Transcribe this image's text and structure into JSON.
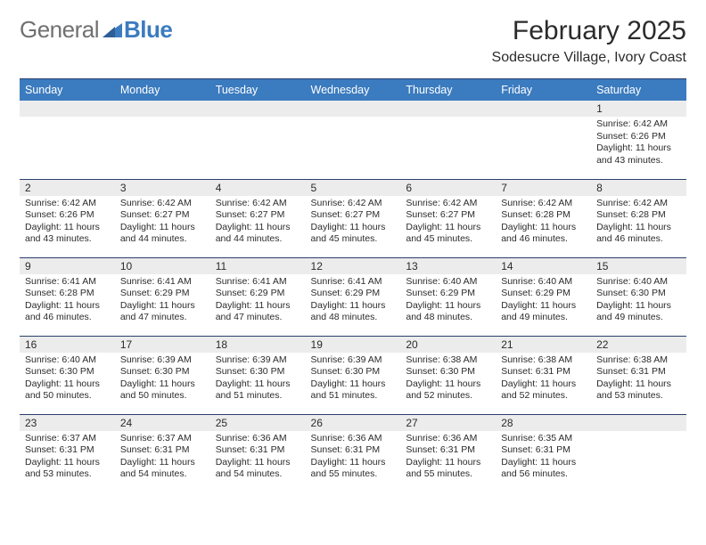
{
  "brand": {
    "word1": "General",
    "word2": "Blue",
    "logo_color": "#3b7bbf"
  },
  "title": "February 2025",
  "location": "Sodesucre Village, Ivory Coast",
  "header_bg": "#3b7bbf",
  "header_fg": "#ffffff",
  "daynum_bg": "#ececec",
  "rule_color": "#2a3e6b",
  "day_headers": [
    "Sunday",
    "Monday",
    "Tuesday",
    "Wednesday",
    "Thursday",
    "Friday",
    "Saturday"
  ],
  "weeks": [
    [
      null,
      null,
      null,
      null,
      null,
      null,
      {
        "n": "1",
        "sunrise": "Sunrise: 6:42 AM",
        "sunset": "Sunset: 6:26 PM",
        "daylight": "Daylight: 11 hours and 43 minutes."
      }
    ],
    [
      {
        "n": "2",
        "sunrise": "Sunrise: 6:42 AM",
        "sunset": "Sunset: 6:26 PM",
        "daylight": "Daylight: 11 hours and 43 minutes."
      },
      {
        "n": "3",
        "sunrise": "Sunrise: 6:42 AM",
        "sunset": "Sunset: 6:27 PM",
        "daylight": "Daylight: 11 hours and 44 minutes."
      },
      {
        "n": "4",
        "sunrise": "Sunrise: 6:42 AM",
        "sunset": "Sunset: 6:27 PM",
        "daylight": "Daylight: 11 hours and 44 minutes."
      },
      {
        "n": "5",
        "sunrise": "Sunrise: 6:42 AM",
        "sunset": "Sunset: 6:27 PM",
        "daylight": "Daylight: 11 hours and 45 minutes."
      },
      {
        "n": "6",
        "sunrise": "Sunrise: 6:42 AM",
        "sunset": "Sunset: 6:27 PM",
        "daylight": "Daylight: 11 hours and 45 minutes."
      },
      {
        "n": "7",
        "sunrise": "Sunrise: 6:42 AM",
        "sunset": "Sunset: 6:28 PM",
        "daylight": "Daylight: 11 hours and 46 minutes."
      },
      {
        "n": "8",
        "sunrise": "Sunrise: 6:42 AM",
        "sunset": "Sunset: 6:28 PM",
        "daylight": "Daylight: 11 hours and 46 minutes."
      }
    ],
    [
      {
        "n": "9",
        "sunrise": "Sunrise: 6:41 AM",
        "sunset": "Sunset: 6:28 PM",
        "daylight": "Daylight: 11 hours and 46 minutes."
      },
      {
        "n": "10",
        "sunrise": "Sunrise: 6:41 AM",
        "sunset": "Sunset: 6:29 PM",
        "daylight": "Daylight: 11 hours and 47 minutes."
      },
      {
        "n": "11",
        "sunrise": "Sunrise: 6:41 AM",
        "sunset": "Sunset: 6:29 PM",
        "daylight": "Daylight: 11 hours and 47 minutes."
      },
      {
        "n": "12",
        "sunrise": "Sunrise: 6:41 AM",
        "sunset": "Sunset: 6:29 PM",
        "daylight": "Daylight: 11 hours and 48 minutes."
      },
      {
        "n": "13",
        "sunrise": "Sunrise: 6:40 AM",
        "sunset": "Sunset: 6:29 PM",
        "daylight": "Daylight: 11 hours and 48 minutes."
      },
      {
        "n": "14",
        "sunrise": "Sunrise: 6:40 AM",
        "sunset": "Sunset: 6:29 PM",
        "daylight": "Daylight: 11 hours and 49 minutes."
      },
      {
        "n": "15",
        "sunrise": "Sunrise: 6:40 AM",
        "sunset": "Sunset: 6:30 PM",
        "daylight": "Daylight: 11 hours and 49 minutes."
      }
    ],
    [
      {
        "n": "16",
        "sunrise": "Sunrise: 6:40 AM",
        "sunset": "Sunset: 6:30 PM",
        "daylight": "Daylight: 11 hours and 50 minutes."
      },
      {
        "n": "17",
        "sunrise": "Sunrise: 6:39 AM",
        "sunset": "Sunset: 6:30 PM",
        "daylight": "Daylight: 11 hours and 50 minutes."
      },
      {
        "n": "18",
        "sunrise": "Sunrise: 6:39 AM",
        "sunset": "Sunset: 6:30 PM",
        "daylight": "Daylight: 11 hours and 51 minutes."
      },
      {
        "n": "19",
        "sunrise": "Sunrise: 6:39 AM",
        "sunset": "Sunset: 6:30 PM",
        "daylight": "Daylight: 11 hours and 51 minutes."
      },
      {
        "n": "20",
        "sunrise": "Sunrise: 6:38 AM",
        "sunset": "Sunset: 6:30 PM",
        "daylight": "Daylight: 11 hours and 52 minutes."
      },
      {
        "n": "21",
        "sunrise": "Sunrise: 6:38 AM",
        "sunset": "Sunset: 6:31 PM",
        "daylight": "Daylight: 11 hours and 52 minutes."
      },
      {
        "n": "22",
        "sunrise": "Sunrise: 6:38 AM",
        "sunset": "Sunset: 6:31 PM",
        "daylight": "Daylight: 11 hours and 53 minutes."
      }
    ],
    [
      {
        "n": "23",
        "sunrise": "Sunrise: 6:37 AM",
        "sunset": "Sunset: 6:31 PM",
        "daylight": "Daylight: 11 hours and 53 minutes."
      },
      {
        "n": "24",
        "sunrise": "Sunrise: 6:37 AM",
        "sunset": "Sunset: 6:31 PM",
        "daylight": "Daylight: 11 hours and 54 minutes."
      },
      {
        "n": "25",
        "sunrise": "Sunrise: 6:36 AM",
        "sunset": "Sunset: 6:31 PM",
        "daylight": "Daylight: 11 hours and 54 minutes."
      },
      {
        "n": "26",
        "sunrise": "Sunrise: 6:36 AM",
        "sunset": "Sunset: 6:31 PM",
        "daylight": "Daylight: 11 hours and 55 minutes."
      },
      {
        "n": "27",
        "sunrise": "Sunrise: 6:36 AM",
        "sunset": "Sunset: 6:31 PM",
        "daylight": "Daylight: 11 hours and 55 minutes."
      },
      {
        "n": "28",
        "sunrise": "Sunrise: 6:35 AM",
        "sunset": "Sunset: 6:31 PM",
        "daylight": "Daylight: 11 hours and 56 minutes."
      },
      null
    ]
  ]
}
